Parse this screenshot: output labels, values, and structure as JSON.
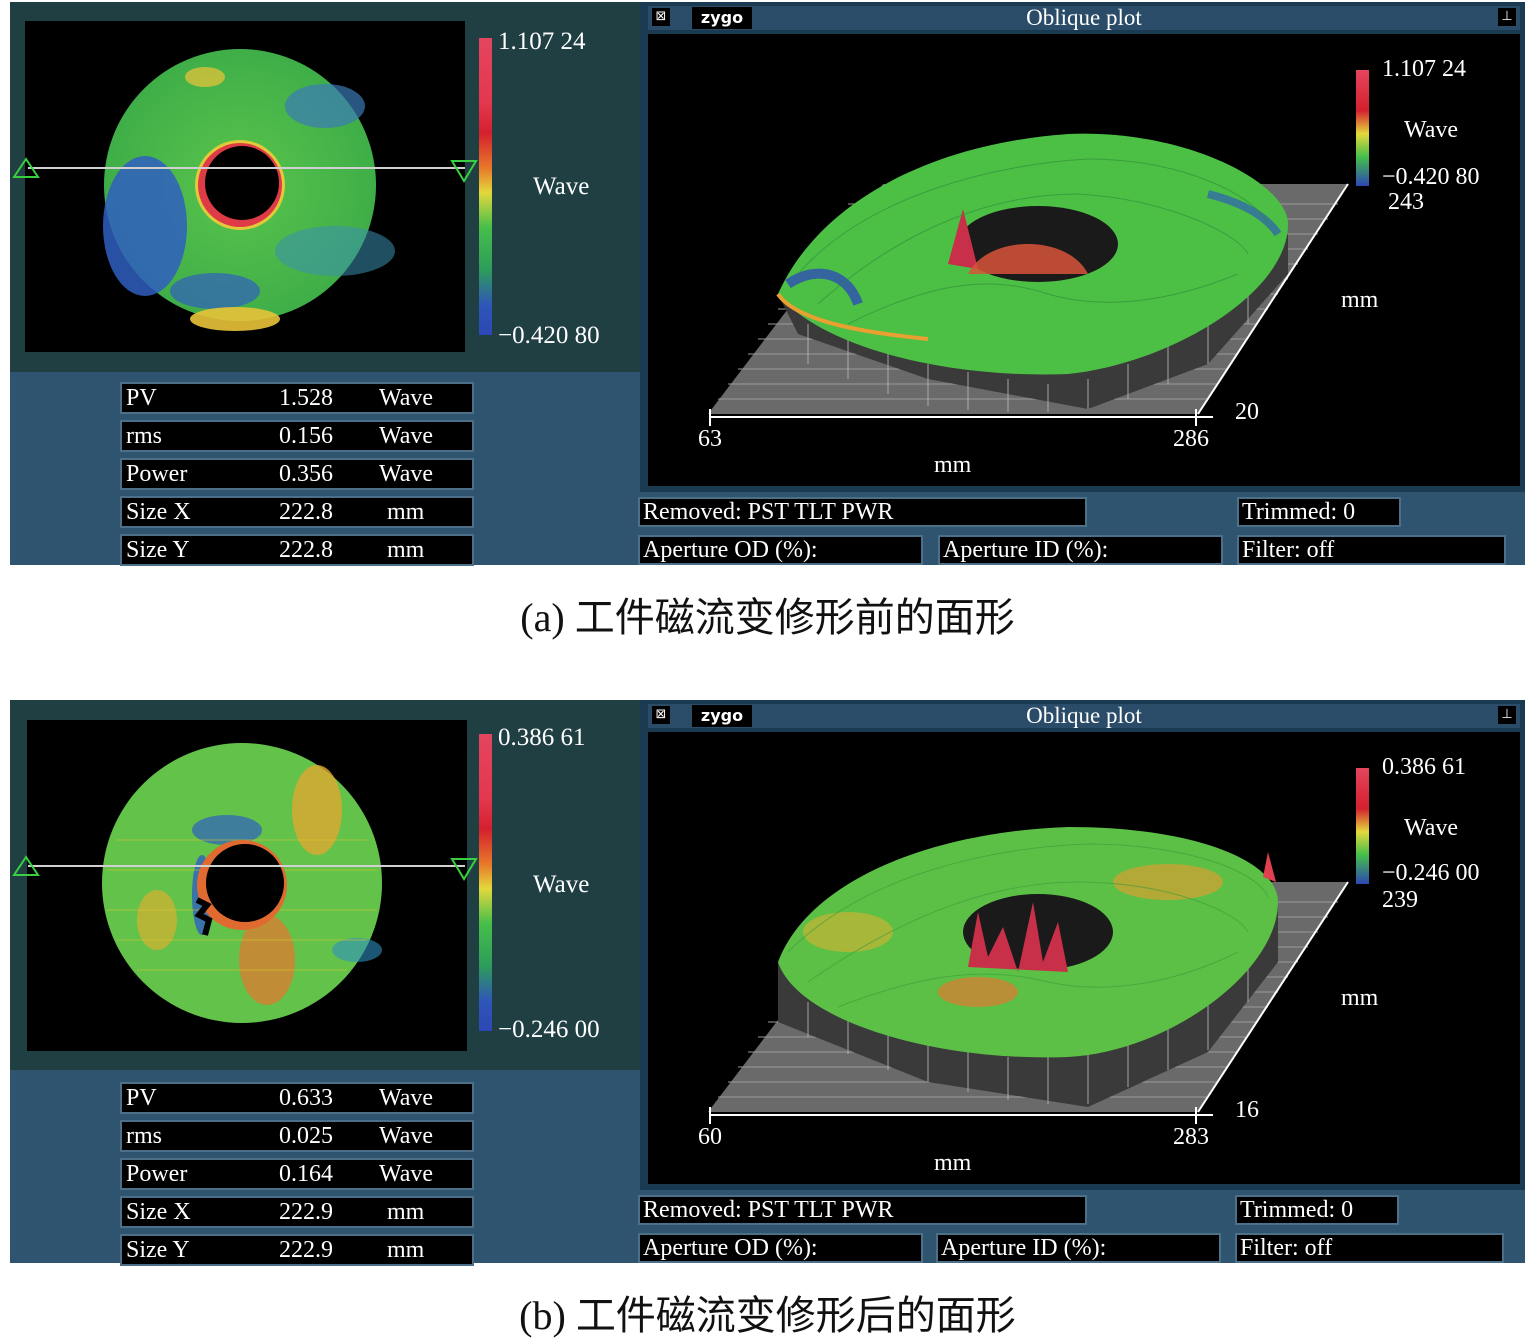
{
  "panels": [
    {
      "colorbar": {
        "max": "1.107 24",
        "unit": "Wave",
        "min": "−0.420 80"
      },
      "stats": [
        {
          "label": "PV",
          "value": "1.528",
          "unit": "Wave"
        },
        {
          "label": "rms",
          "value": "0.156",
          "unit": "Wave"
        },
        {
          "label": "Power",
          "value": "0.356",
          "unit": "Wave"
        },
        {
          "label": "Size X",
          "value": "222.8",
          "unit": "mm"
        },
        {
          "label": "Size Y",
          "value": "222.8",
          "unit": "mm"
        }
      ],
      "oblique": {
        "title": "Oblique plot",
        "logo": "zygo",
        "scale_max": "1.107 24",
        "scale_unit": "Wave",
        "scale_min": "−0.420 80",
        "y_max": "243",
        "y_unit": "mm",
        "y_min": "20",
        "x_min": "63",
        "x_max": "286",
        "x_unit": "mm"
      },
      "info": {
        "removed": "Removed: PST TLT PWR",
        "trimmed": "Trimmed: 0",
        "aperture_od": "Aperture OD (%):",
        "aperture_id": "Aperture ID (%):",
        "filter": "Filter: off"
      },
      "caption": "(a) 工件磁流变修形前的面形"
    },
    {
      "colorbar": {
        "max": "0.386 61",
        "unit": "Wave",
        "min": "−0.246 00"
      },
      "stats": [
        {
          "label": "PV",
          "value": "0.633",
          "unit": "Wave"
        },
        {
          "label": "rms",
          "value": "0.025",
          "unit": "Wave"
        },
        {
          "label": "Power",
          "value": "0.164",
          "unit": "Wave"
        },
        {
          "label": "Size X",
          "value": "222.9",
          "unit": "mm"
        },
        {
          "label": "Size Y",
          "value": "222.9",
          "unit": "mm"
        }
      ],
      "oblique": {
        "title": "Oblique plot",
        "logo": "zygo",
        "scale_max": "0.386 61",
        "scale_unit": "Wave",
        "scale_min": "−0.246 00",
        "y_max": "239",
        "y_unit": "mm",
        "y_min": "16",
        "x_min": "60",
        "x_max": "283",
        "x_unit": "mm"
      },
      "info": {
        "removed": "Removed: PST TLT PWR",
        "trimmed": "Trimmed: 0",
        "aperture_od": "Aperture OD (%):",
        "aperture_id": "Aperture ID (%):",
        "filter": "Filter: off"
      },
      "caption": "(b) 工件磁流变修形后的面形"
    }
  ]
}
